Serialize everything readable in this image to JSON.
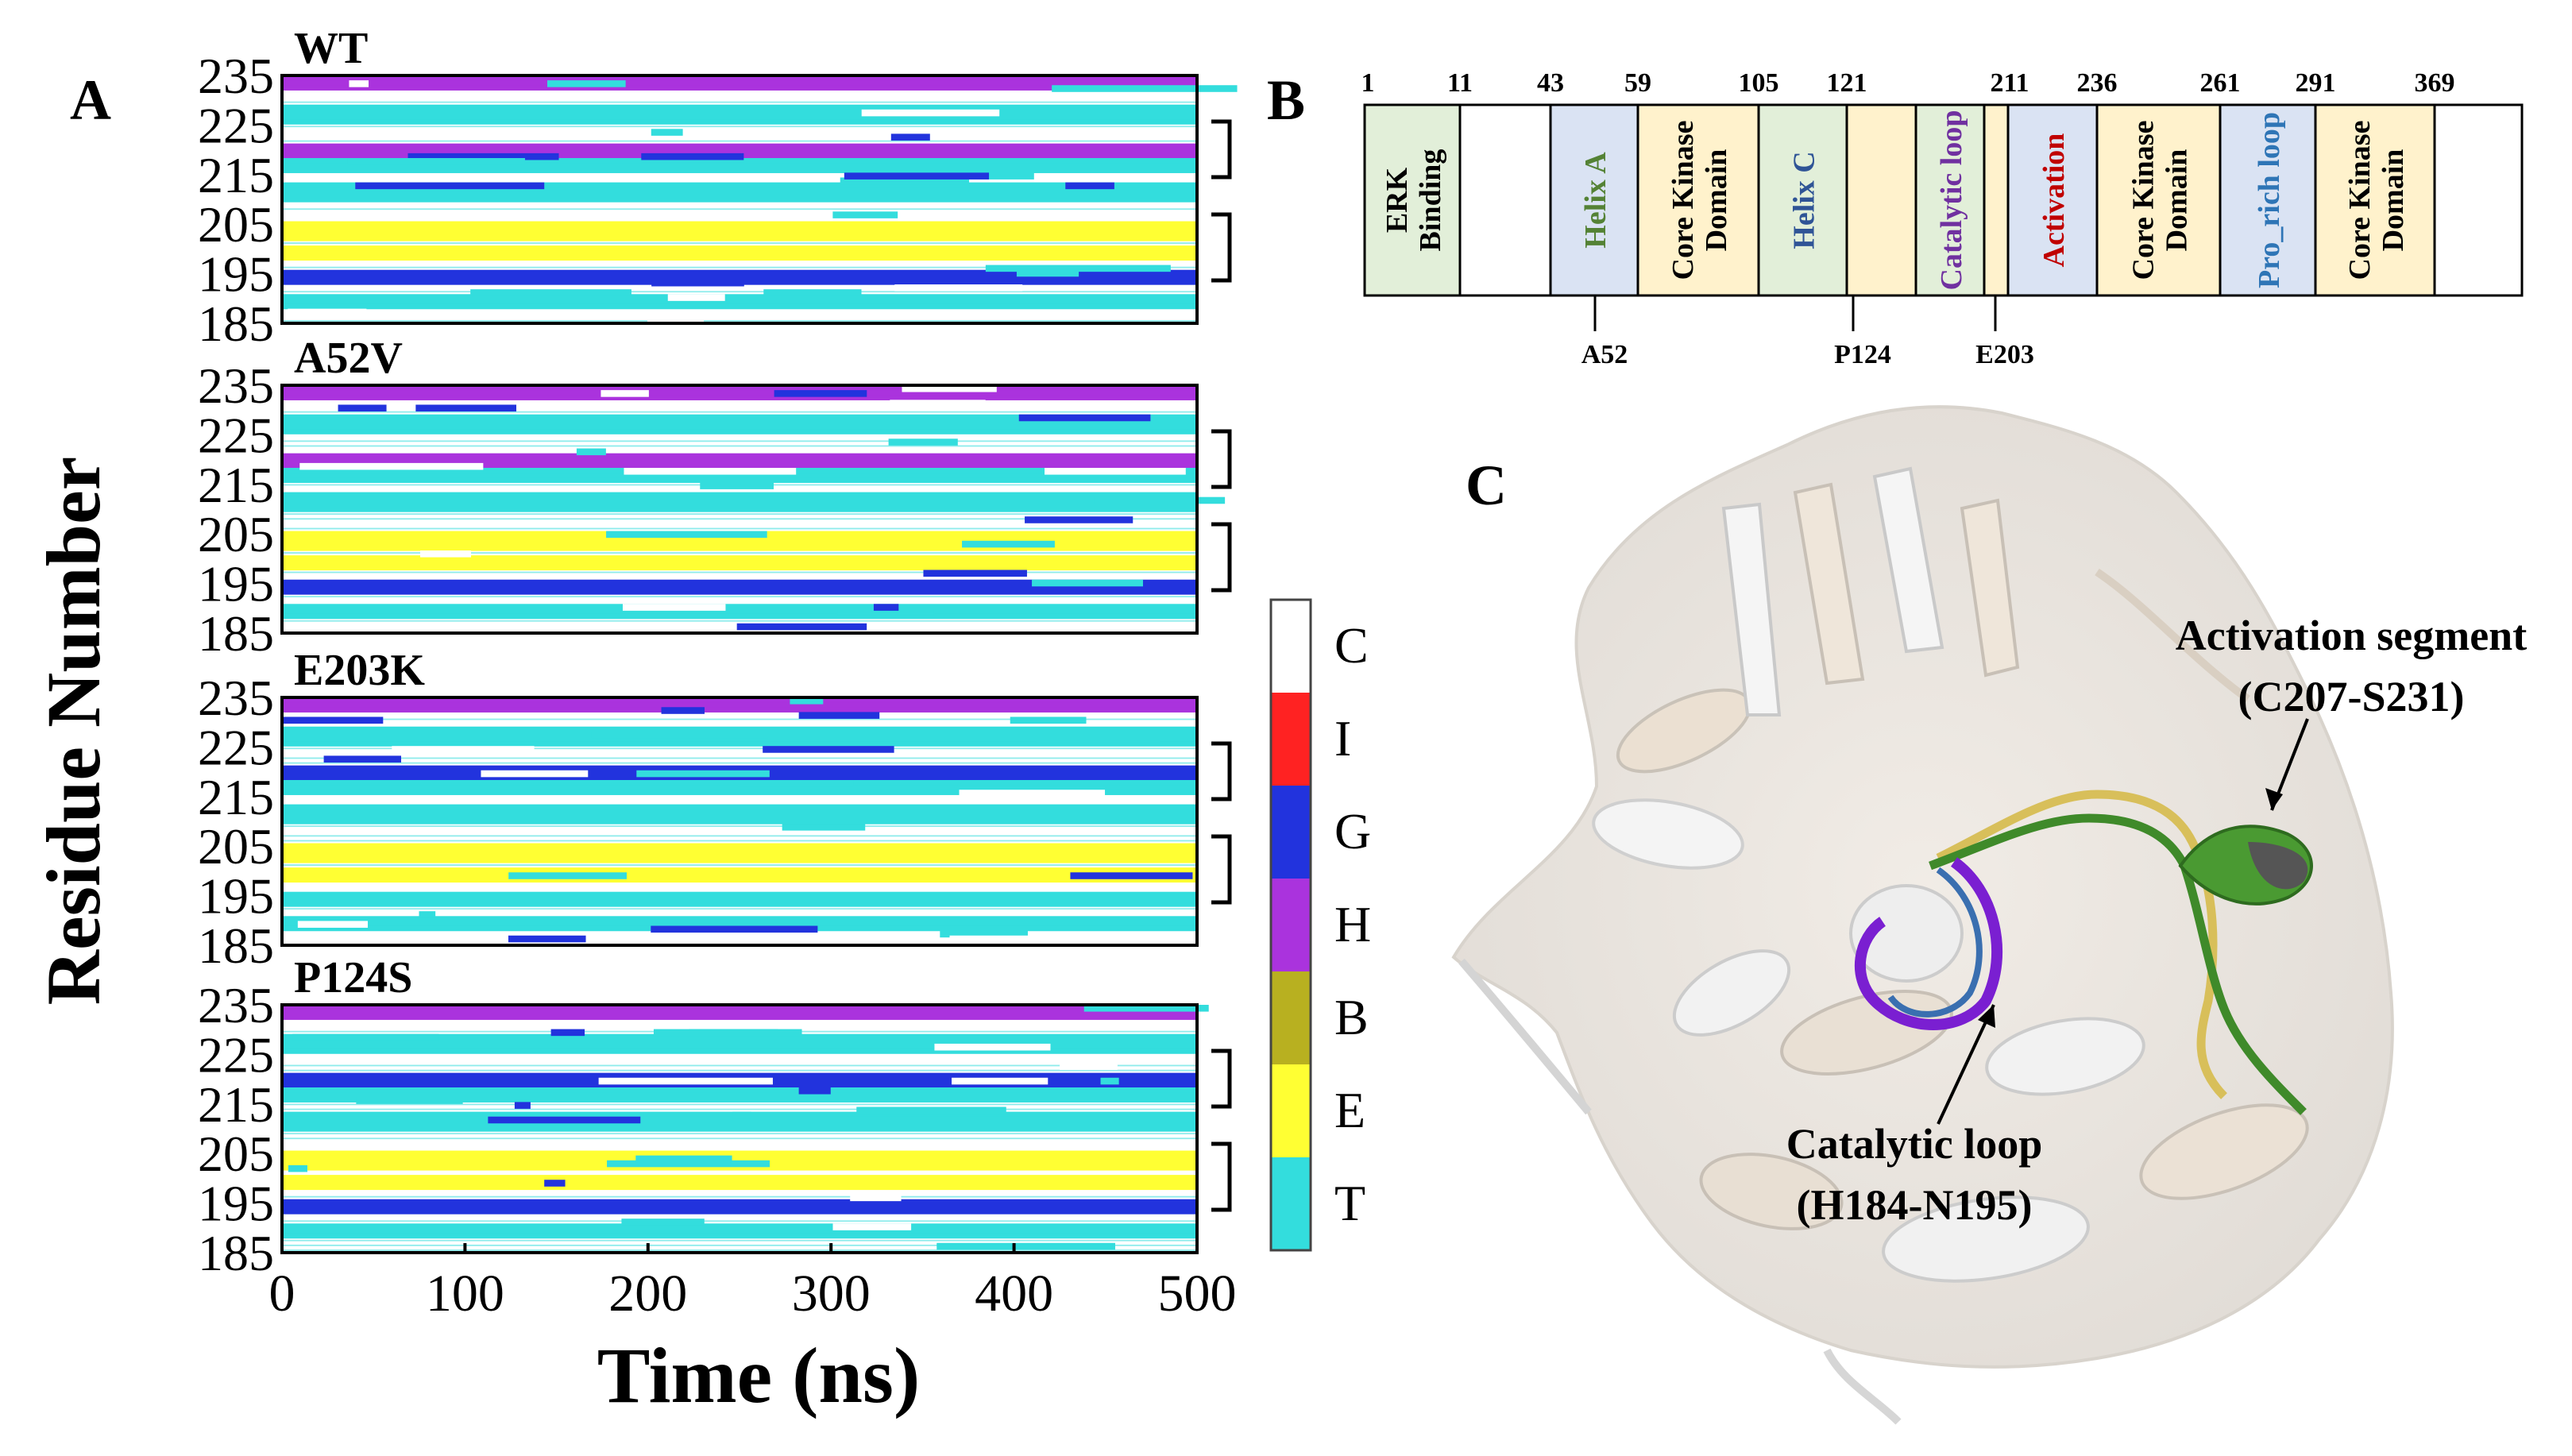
{
  "panel_labels": {
    "a": "A",
    "b": "B",
    "c": "C"
  },
  "panel_a": {
    "ylabel": "Residue Number",
    "xlabel": "Time (ns)",
    "yticks": [
      "235",
      "225",
      "215",
      "205",
      "195",
      "185"
    ],
    "xticks": [
      "0",
      "100",
      "200",
      "300",
      "400",
      "500"
    ],
    "legend": [
      {
        "code": "C",
        "color": "#ffffff"
      },
      {
        "code": "I",
        "color": "#ff2222"
      },
      {
        "code": "G",
        "color": "#2233dd"
      },
      {
        "code": "H",
        "color": "#aa33dd"
      },
      {
        "code": "B",
        "color": "#b8b020"
      },
      {
        "code": "E",
        "color": "#ffff33"
      },
      {
        "code": "T",
        "color": "#33dddd"
      }
    ],
    "plots": [
      {
        "title": "WT"
      },
      {
        "title": "A52V"
      },
      {
        "title": "E203K"
      },
      {
        "title": "P124S"
      }
    ]
  },
  "panel_b": {
    "numbers": [
      "1",
      "11",
      "43",
      "59",
      "105",
      "121",
      "211",
      "236",
      "261",
      "291",
      "369"
    ],
    "domains": [
      {
        "lines": [
          "ERK",
          "Binding"
        ],
        "fill": "#e2efd9",
        "text_color": "#000000"
      },
      {
        "lines": [],
        "fill": "#ffffff",
        "text_color": "#000000"
      },
      {
        "lines": [
          "Helix A"
        ],
        "fill": "#dae3f3",
        "text_color": "#548235"
      },
      {
        "lines": [
          "Core Kinase",
          "Domain"
        ],
        "fill": "#fff2cc",
        "text_color": "#000000"
      },
      {
        "lines": [
          "Helix C"
        ],
        "fill": "#e2efd9",
        "text_color": "#2f5496"
      },
      {
        "lines": [],
        "fill": "#fff2cc",
        "text_color": "#000000"
      },
      {
        "lines": [
          "Catalytic loop"
        ],
        "fill": "#e2efd9",
        "text_color": "#7030a0"
      },
      {
        "lines": [],
        "fill": "#fff2cc",
        "text_color": "#000000"
      },
      {
        "lines": [
          "Activation"
        ],
        "fill": "#dae3f3",
        "text_color": "#c00000"
      },
      {
        "lines": [
          "Core Kinase",
          "Domain"
        ],
        "fill": "#fff2cc",
        "text_color": "#000000"
      },
      {
        "lines": [
          "Pro_rich loop"
        ],
        "fill": "#dae3f3",
        "text_color": "#2e75b6"
      },
      {
        "lines": [
          "Core Kinase",
          "Domain"
        ],
        "fill": "#fff2cc",
        "text_color": "#000000"
      },
      {
        "lines": [],
        "fill": "#ffffff",
        "text_color": "#000000"
      }
    ],
    "mutations": [
      "A52",
      "P124",
      "E203"
    ]
  },
  "panel_c": {
    "activation_label": [
      "Activation segment",
      "(C207-S231)"
    ],
    "catalytic_label": [
      "Catalytic loop",
      "(H184-N195)"
    ]
  }
}
